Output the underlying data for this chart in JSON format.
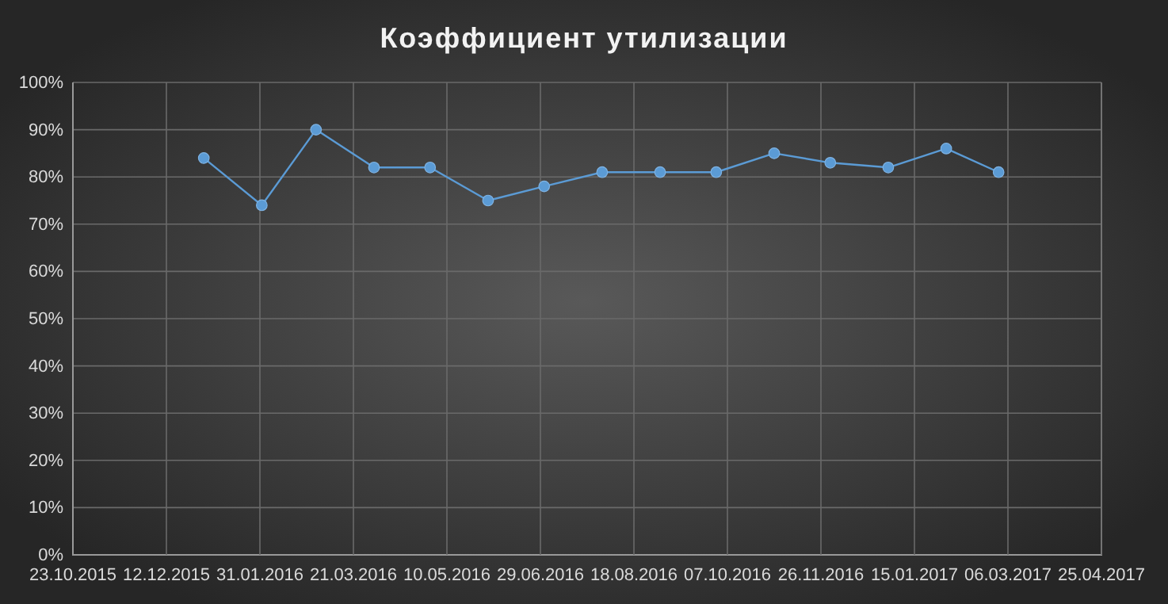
{
  "chart_data": {
    "type": "line",
    "title": "Коэффициент  утилизации",
    "x": [
      "2016-01-01",
      "2016-02-01",
      "2016-03-01",
      "2016-04-01",
      "2016-05-01",
      "2016-06-01",
      "2016-07-01",
      "2016-08-01",
      "2016-09-01",
      "2016-10-01",
      "2016-11-01",
      "2016-12-01",
      "2017-01-01",
      "2017-02-01",
      "2017-03-01"
    ],
    "series": [
      {
        "color": "#5b9bd5",
        "values": [
          84,
          74,
          90,
          82,
          82,
          75,
          78,
          81,
          81,
          81,
          85,
          83,
          82,
          86,
          81
        ]
      }
    ],
    "xlim": [
      "2015-10-23",
      "2017-04-25"
    ],
    "xticks": [
      {
        "value": "2015-10-23",
        "label": "23.10.2015"
      },
      {
        "value": "2015-12-12",
        "label": "12.12.2015"
      },
      {
        "value": "2016-01-31",
        "label": "31.01.2016"
      },
      {
        "value": "2016-03-21",
        "label": "21.03.2016"
      },
      {
        "value": "2016-05-10",
        "label": "10.05.2016"
      },
      {
        "value": "2016-06-29",
        "label": "29.06.2016"
      },
      {
        "value": "2016-08-18",
        "label": "18.08.2016"
      },
      {
        "value": "2016-10-07",
        "label": "07.10.2016"
      },
      {
        "value": "2016-11-26",
        "label": "26.11.2016"
      },
      {
        "value": "2017-01-15",
        "label": "15.01.2017"
      },
      {
        "value": "2017-03-06",
        "label": "06.03.2017"
      },
      {
        "value": "2017-04-25",
        "label": "25.04.2017"
      }
    ],
    "ylim": [
      0,
      100
    ],
    "yticks": [
      {
        "value": 0,
        "label": "0%"
      },
      {
        "value": 10,
        "label": "10%"
      },
      {
        "value": 20,
        "label": "20%"
      },
      {
        "value": 30,
        "label": "30%"
      },
      {
        "value": 40,
        "label": "40%"
      },
      {
        "value": 50,
        "label": "50%"
      },
      {
        "value": 60,
        "label": "60%"
      },
      {
        "value": 70,
        "label": "70%"
      },
      {
        "value": 80,
        "label": "80%"
      },
      {
        "value": 90,
        "label": "90%"
      },
      {
        "value": 100,
        "label": "100%"
      }
    ],
    "grid": true,
    "marker": "circle",
    "line_style": "solid"
  }
}
